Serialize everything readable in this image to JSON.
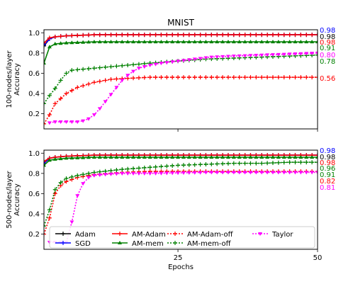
{
  "figure_title": "MNIST",
  "xlabel": "Epochs",
  "colors": {
    "Adam": "#000000",
    "SGD": "#0000ff",
    "AM-Adam": "#ff0000",
    "AM-mem": "#008000",
    "AM-Adam-off": "#ff0000",
    "AM-mem-off": "#008000",
    "Taylor": "#ff00ff"
  },
  "legend": [
    {
      "name": "Adam",
      "style": "solid",
      "marker": "plus"
    },
    {
      "name": "SGD",
      "style": "solid",
      "marker": "plus"
    },
    {
      "name": "AM-Adam",
      "style": "solid",
      "marker": "plus"
    },
    {
      "name": "AM-mem",
      "style": "solid",
      "marker": "triangle"
    },
    {
      "name": "AM-Adam-off",
      "style": "dotted",
      "marker": "plus"
    },
    {
      "name": "AM-mem-off",
      "style": "dotted",
      "marker": "plus"
    },
    {
      "name": "Taylor",
      "style": "dotted",
      "marker": "triangle-down"
    }
  ],
  "chart_data": [
    {
      "type": "line",
      "ylabel": "100-nodes/layer\nAccuracy",
      "xlim": [
        1,
        50
      ],
      "ylim": [
        0.05,
        1.03
      ],
      "xticks": [
        25,
        50
      ],
      "yticks": [
        0.2,
        0.4,
        0.6,
        0.8,
        1.0
      ],
      "end_labels": [
        {
          "text": "0.98",
          "series": "SGD",
          "color": "#0000ff"
        },
        {
          "text": "0.98",
          "series": "Adam",
          "color": "#000000"
        },
        {
          "text": "0.98",
          "series": "AM-Adam",
          "color": "#ff0000"
        },
        {
          "text": "0.91",
          "series": "AM-mem",
          "color": "#008000"
        },
        {
          "text": "0.80",
          "series": "Taylor",
          "color": "#ff00ff"
        },
        {
          "text": "0.78",
          "series": "AM-mem-off",
          "color": "#008000"
        },
        {
          "text": "0.56",
          "series": "AM-Adam-off",
          "color": "#ff0000"
        }
      ],
      "series": [
        {
          "name": "Adam",
          "points": [
            [
              1,
              0.87
            ],
            [
              2,
              0.94
            ],
            [
              3,
              0.96
            ],
            [
              5,
              0.97
            ],
            [
              10,
              0.98
            ],
            [
              20,
              0.98
            ],
            [
              30,
              0.98
            ],
            [
              40,
              0.98
            ],
            [
              50,
              0.98
            ]
          ]
        },
        {
          "name": "SGD",
          "points": [
            [
              1,
              0.88
            ],
            [
              2,
              0.94
            ],
            [
              3,
              0.96
            ],
            [
              5,
              0.97
            ],
            [
              10,
              0.98
            ],
            [
              20,
              0.98
            ],
            [
              30,
              0.98
            ],
            [
              40,
              0.98
            ],
            [
              50,
              0.98
            ]
          ]
        },
        {
          "name": "AM-Adam",
          "points": [
            [
              1,
              0.9
            ],
            [
              2,
              0.95
            ],
            [
              3,
              0.96
            ],
            [
              5,
              0.97
            ],
            [
              10,
              0.98
            ],
            [
              20,
              0.98
            ],
            [
              30,
              0.98
            ],
            [
              40,
              0.98
            ],
            [
              50,
              0.98
            ]
          ]
        },
        {
          "name": "AM-mem",
          "points": [
            [
              1,
              0.7
            ],
            [
              2,
              0.86
            ],
            [
              3,
              0.89
            ],
            [
              5,
              0.9
            ],
            [
              10,
              0.91
            ],
            [
              20,
              0.91
            ],
            [
              30,
              0.91
            ],
            [
              40,
              0.91
            ],
            [
              50,
              0.91
            ]
          ]
        },
        {
          "name": "AM-Adam-off",
          "points": [
            [
              1,
              0.1
            ],
            [
              2,
              0.19
            ],
            [
              3,
              0.3
            ],
            [
              5,
              0.4
            ],
            [
              7,
              0.46
            ],
            [
              10,
              0.51
            ],
            [
              13,
              0.54
            ],
            [
              16,
              0.55
            ],
            [
              20,
              0.56
            ],
            [
              30,
              0.56
            ],
            [
              40,
              0.56
            ],
            [
              50,
              0.56
            ]
          ]
        },
        {
          "name": "AM-mem-off",
          "points": [
            [
              1,
              0.3
            ],
            [
              2,
              0.38
            ],
            [
              3,
              0.45
            ],
            [
              4,
              0.53
            ],
            [
              5,
              0.6
            ],
            [
              6,
              0.63
            ],
            [
              8,
              0.64
            ],
            [
              12,
              0.66
            ],
            [
              16,
              0.68
            ],
            [
              20,
              0.7
            ],
            [
              25,
              0.72
            ],
            [
              30,
              0.74
            ],
            [
              35,
              0.75
            ],
            [
              40,
              0.76
            ],
            [
              45,
              0.77
            ],
            [
              50,
              0.78
            ]
          ]
        },
        {
          "name": "Taylor",
          "points": [
            [
              2,
              0.11
            ],
            [
              3,
              0.12
            ],
            [
              5,
              0.12
            ],
            [
              7,
              0.12
            ],
            [
              8,
              0.13
            ],
            [
              9,
              0.15
            ],
            [
              10,
              0.19
            ],
            [
              11,
              0.25
            ],
            [
              12,
              0.32
            ],
            [
              13,
              0.39
            ],
            [
              14,
              0.46
            ],
            [
              15,
              0.53
            ],
            [
              16,
              0.58
            ],
            [
              17,
              0.62
            ],
            [
              18,
              0.65
            ],
            [
              20,
              0.68
            ],
            [
              22,
              0.7
            ],
            [
              25,
              0.72
            ],
            [
              28,
              0.74
            ],
            [
              31,
              0.76
            ],
            [
              35,
              0.77
            ],
            [
              40,
              0.78
            ],
            [
              45,
              0.79
            ],
            [
              50,
              0.8
            ]
          ]
        }
      ]
    },
    {
      "type": "line",
      "ylabel": "500-nodes/layer\nAccuracy",
      "xlim": [
        1,
        50
      ],
      "ylim": [
        0.05,
        1.03
      ],
      "xticks": [
        25,
        50
      ],
      "yticks": [
        0.2,
        0.4,
        0.6,
        0.8,
        1.0
      ],
      "end_labels": [
        {
          "text": "0.98",
          "series": "SGD",
          "color": "#0000ff"
        },
        {
          "text": "0.98",
          "series": "Adam",
          "color": "#000000"
        },
        {
          "text": "0.98",
          "series": "AM-Adam",
          "color": "#ff0000"
        },
        {
          "text": "0.96",
          "series": "AM-mem",
          "color": "#008000"
        },
        {
          "text": "0.91",
          "series": "AM-mem-off",
          "color": "#008000"
        },
        {
          "text": "0.82",
          "series": "AM-Adam-off",
          "color": "#ff0000"
        },
        {
          "text": "0.81",
          "series": "Taylor",
          "color": "#ff00ff"
        }
      ],
      "series": [
        {
          "name": "Adam",
          "points": [
            [
              1,
              0.9
            ],
            [
              2,
              0.95
            ],
            [
              3,
              0.96
            ],
            [
              5,
              0.97
            ],
            [
              10,
              0.98
            ],
            [
              20,
              0.98
            ],
            [
              30,
              0.98
            ],
            [
              40,
              0.98
            ],
            [
              50,
              0.98
            ]
          ]
        },
        {
          "name": "SGD",
          "points": [
            [
              1,
              0.9
            ],
            [
              2,
              0.95
            ],
            [
              3,
              0.96
            ],
            [
              5,
              0.97
            ],
            [
              10,
              0.98
            ],
            [
              20,
              0.98
            ],
            [
              30,
              0.98
            ],
            [
              40,
              0.98
            ],
            [
              50,
              0.98
            ]
          ]
        },
        {
          "name": "AM-Adam",
          "points": [
            [
              1,
              0.92
            ],
            [
              2,
              0.95
            ],
            [
              3,
              0.96
            ],
            [
              5,
              0.97
            ],
            [
              10,
              0.98
            ],
            [
              20,
              0.98
            ],
            [
              30,
              0.98
            ],
            [
              40,
              0.98
            ],
            [
              50,
              0.98
            ]
          ]
        },
        {
          "name": "AM-mem",
          "points": [
            [
              1,
              0.88
            ],
            [
              2,
              0.93
            ],
            [
              3,
              0.94
            ],
            [
              5,
              0.95
            ],
            [
              10,
              0.96
            ],
            [
              20,
              0.96
            ],
            [
              30,
              0.96
            ],
            [
              40,
              0.96
            ],
            [
              50,
              0.96
            ]
          ]
        },
        {
          "name": "AM-Adam-off",
          "points": [
            [
              1,
              0.2
            ],
            [
              2,
              0.36
            ],
            [
              3,
              0.6
            ],
            [
              4,
              0.68
            ],
            [
              5,
              0.72
            ],
            [
              7,
              0.76
            ],
            [
              10,
              0.79
            ],
            [
              15,
              0.81
            ],
            [
              20,
              0.82
            ],
            [
              30,
              0.82
            ],
            [
              40,
              0.82
            ],
            [
              50,
              0.82
            ]
          ]
        },
        {
          "name": "AM-mem-off",
          "points": [
            [
              1,
              0.28
            ],
            [
              2,
              0.44
            ],
            [
              3,
              0.64
            ],
            [
              4,
              0.71
            ],
            [
              5,
              0.75
            ],
            [
              7,
              0.78
            ],
            [
              10,
              0.81
            ],
            [
              15,
              0.84
            ],
            [
              20,
              0.86
            ],
            [
              25,
              0.88
            ],
            [
              30,
              0.89
            ],
            [
              35,
              0.9
            ],
            [
              40,
              0.9
            ],
            [
              45,
              0.91
            ],
            [
              50,
              0.91
            ]
          ]
        },
        {
          "name": "Taylor",
          "points": [
            [
              2,
              0.12
            ],
            [
              3,
              0.12
            ],
            [
              5,
              0.12
            ],
            [
              6,
              0.32
            ],
            [
              7,
              0.58
            ],
            [
              8,
              0.7
            ],
            [
              9,
              0.76
            ],
            [
              10,
              0.78
            ],
            [
              12,
              0.79
            ],
            [
              15,
              0.8
            ],
            [
              20,
              0.8
            ],
            [
              30,
              0.81
            ],
            [
              40,
              0.81
            ],
            [
              50,
              0.81
            ]
          ]
        }
      ]
    }
  ]
}
